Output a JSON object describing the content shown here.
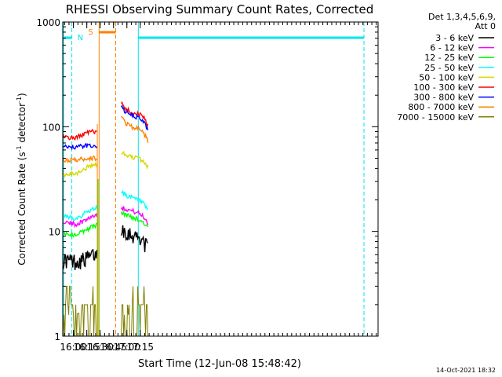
{
  "chart_data": {
    "type": "line",
    "title": "RHESSI Observing Summary Count Rates, Corrected",
    "xlabel": "Start Time (12-Jun-08 15:48:42)",
    "ylabel_main": "Corrected Count Rate (s",
    "ylabel_sup1": "-1",
    "ylabel_mid": " detector",
    "ylabel_sup2": "-1",
    "ylabel_end": ")",
    "y_scale": "log",
    "ylim": [
      1,
      1000
    ],
    "xlim_min": [
      948,
      1302
    ],
    "y_ticks": [
      {
        "v": 1,
        "label": "1"
      },
      {
        "v": 10,
        "label": "10"
      },
      {
        "v": 100,
        "label": "100"
      },
      {
        "v": 1000,
        "label": "1000"
      }
    ],
    "x_ticks": [
      {
        "v": 960,
        "label": "16:00"
      },
      {
        "v": 975,
        "label": "16:15"
      },
      {
        "v": 990,
        "label": "16:30"
      },
      {
        "v": 1005,
        "label": "16:45"
      },
      {
        "v": 1020,
        "label": "17:00"
      },
      {
        "v": 1035,
        "label": "17:15"
      }
    ],
    "legend_header": [
      "Det 1,3,4,5,6,9,",
      "Att 0"
    ],
    "legend_placement": "right",
    "timestamp": "14-Oct-2021 18:32",
    "intervals": {
      "night_label": "N",
      "saa_label": "S",
      "night_color": "#00e5ee",
      "saa_color": "#ff8000",
      "night_start": 958.2,
      "night_end": 1032.8,
      "saa_start": 988.8,
      "saa_end": 1007.4,
      "data_gap_start": 986.8,
      "data_gap_end": 1013.5
    },
    "segment_windows": [
      [
        948.3,
        986.7
      ],
      [
        1013.6,
        1044.2
      ]
    ],
    "series": [
      {
        "name": "3 - 6 keV",
        "color": "#000000",
        "x": [
          948.5,
          955,
          962,
          969,
          976,
          983,
          986.5
        ],
        "y": [
          5.3,
          5.3,
          5.2,
          5.3,
          5.6,
          6.0,
          6.0
        ],
        "x2": [
          1013.7,
          1018,
          1023,
          1028,
          1033,
          1038,
          1044
        ],
        "y2": [
          10.8,
          10.2,
          9.6,
          9.2,
          8.8,
          8.3,
          6.6
        ]
      },
      {
        "name": "6 - 12 keV",
        "color": "#ff00ff",
        "x": [
          948.5,
          955,
          962,
          969,
          976,
          983,
          986.5
        ],
        "y": [
          12.5,
          12.0,
          11.7,
          12.3,
          13.3,
          14.2,
          14.5
        ],
        "x2": [
          1013.7,
          1018,
          1023,
          1028,
          1033,
          1038,
          1044
        ],
        "y2": [
          17.0,
          16.5,
          16.0,
          15.5,
          15.0,
          14.0,
          12.0
        ]
      },
      {
        "name": "12 - 25 keV",
        "color": "#00ff00",
        "x": [
          948.5,
          955,
          962,
          969,
          976,
          983,
          986.5
        ],
        "y": [
          9.8,
          9.4,
          9.3,
          9.8,
          10.6,
          11.3,
          11.6
        ],
        "x2": [
          1013.7,
          1018,
          1023,
          1028,
          1033,
          1038,
          1044
        ],
        "y2": [
          15.0,
          14.5,
          14.0,
          13.5,
          13.0,
          12.3,
          10.8
        ]
      },
      {
        "name": "25 - 50 keV",
        "color": "#00ffff",
        "x": [
          948.5,
          955,
          962,
          969,
          976,
          983,
          986.5
        ],
        "y": [
          13.8,
          13.6,
          13.4,
          14.2,
          15.5,
          16.5,
          17.0
        ],
        "x2": [
          1013.7,
          1018,
          1023,
          1028,
          1033,
          1038,
          1044
        ],
        "y2": [
          24.5,
          22.5,
          21.5,
          20.5,
          20.0,
          18.5,
          15.5
        ]
      },
      {
        "name": "50 - 100 keV",
        "color": "#d8d800",
        "x": [
          948.5,
          955,
          962,
          969,
          976,
          983,
          986.5
        ],
        "y": [
          34.0,
          35.0,
          35.5,
          38.0,
          41.0,
          43.0,
          43.5
        ],
        "x2": [
          1013.7,
          1018,
          1023,
          1028,
          1033,
          1038,
          1044
        ],
        "y2": [
          57.0,
          54.0,
          52.0,
          51.0,
          50.0,
          47.0,
          41.0
        ]
      },
      {
        "name": "100 - 300 keV",
        "color": "#ff0000",
        "x": [
          948.5,
          955,
          962,
          969,
          976,
          983,
          986.5
        ],
        "y": [
          82.0,
          79.0,
          78.0,
          83.0,
          88.0,
          90.0,
          91.0
        ],
        "x2": [
          1013.7,
          1018,
          1023,
          1028,
          1033,
          1038,
          1044
        ],
        "y2": [
          170.0,
          150.0,
          140.0,
          135.0,
          133.0,
          125.0,
          100.0
        ]
      },
      {
        "name": "300 - 800 keV",
        "color": "#0000ff",
        "x": [
          948.5,
          955,
          962,
          969,
          976,
          983,
          986.5
        ],
        "y": [
          66.0,
          65.0,
          64.0,
          65.0,
          66.0,
          66.0,
          66.0
        ],
        "x2": [
          1013.7,
          1018,
          1023,
          1028,
          1033,
          1038,
          1044
        ],
        "y2": [
          155.0,
          140.0,
          130.0,
          125.0,
          122.0,
          115.0,
          90.0
        ]
      },
      {
        "name": "800 - 7000 keV",
        "color": "#ff8000",
        "x": [
          948.5,
          955,
          962,
          969,
          976,
          983,
          986.5
        ],
        "y": [
          48.0,
          48.0,
          48.0,
          49.0,
          50.0,
          50.0,
          50.0
        ],
        "x2": [
          1013.7,
          1018,
          1023,
          1028,
          1033,
          1038,
          1044
        ],
        "y2": [
          125.0,
          110.0,
          103.0,
          98.0,
          95.0,
          88.0,
          72.0
        ]
      },
      {
        "name": "7000 - 15000 keV",
        "color": "#808000",
        "x": [
          948.5,
          955,
          962,
          969,
          976,
          983,
          986.5
        ],
        "y": [
          1.6,
          1.6,
          1.6,
          1.7,
          2.1,
          2.3,
          1.8
        ],
        "x2": [
          1013.7,
          1018,
          1023,
          1028,
          1033,
          1038,
          1044
        ],
        "y2": [
          1.6,
          1.6,
          1.6,
          1.8,
          2.3,
          2.0,
          1.6
        ]
      }
    ]
  }
}
